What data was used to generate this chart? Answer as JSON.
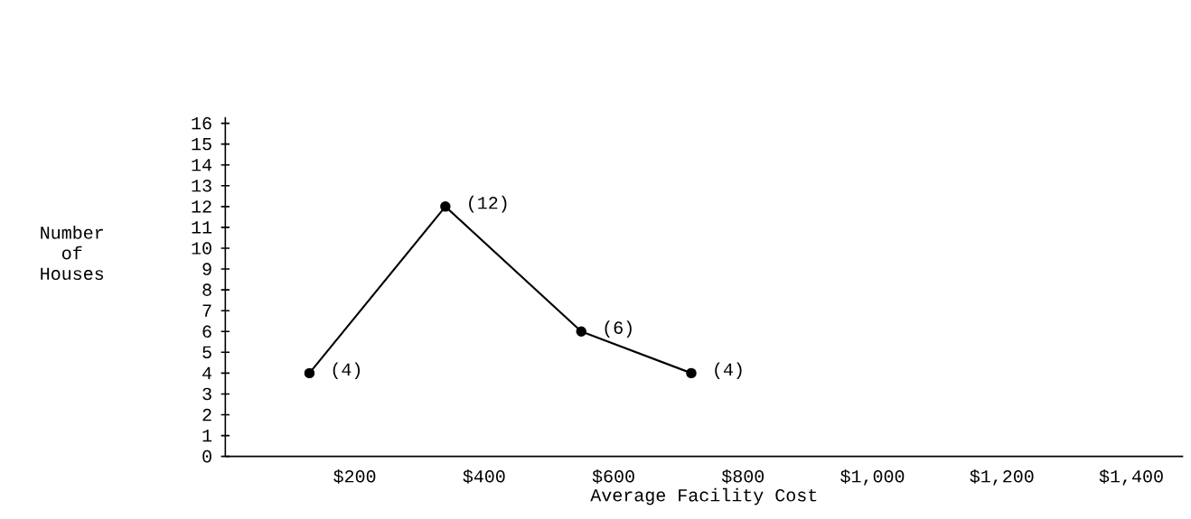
{
  "chart_data": {
    "type": "line",
    "xlabel": "Average Facility Cost",
    "ylabel": "Number of Houses",
    "x": [
      130,
      340,
      550,
      720
    ],
    "series": [
      {
        "color": "#000000",
        "values": [
          4,
          12,
          6,
          4
        ],
        "value_labels": [
          "(4)",
          "(12)",
          "(6)",
          "(4)"
        ]
      }
    ],
    "xlim": [
      0,
      1480
    ],
    "ylim": [
      0,
      16.3
    ],
    "xticks": [
      {
        "value": 200,
        "label": "$200"
      },
      {
        "value": 400,
        "label": "$400"
      },
      {
        "value": 600,
        "label": "$600"
      },
      {
        "value": 800,
        "label": "$800"
      },
      {
        "value": 1000,
        "label": "$1,000"
      },
      {
        "value": 1200,
        "label": "$1,200"
      },
      {
        "value": 1400,
        "label": "$1,400"
      }
    ],
    "yticks": [
      0,
      1,
      2,
      3,
      4,
      5,
      6,
      7,
      8,
      9,
      10,
      11,
      12,
      13,
      14,
      15,
      16
    ],
    "marker": "circle",
    "line_style": "solid"
  }
}
